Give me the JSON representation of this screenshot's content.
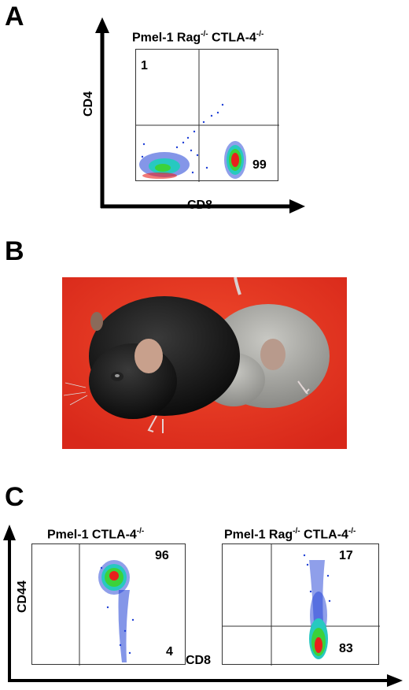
{
  "panels": {
    "a": {
      "letter": "A",
      "title_main": "Pmel-1 Rag",
      "title_sup1": "-/-",
      "title_mid": " CTLA-4",
      "title_sup2": "-/-",
      "x_label": "CD8",
      "y_label": "CD4",
      "quad_ul": "1",
      "quad_lr": "99"
    },
    "b": {
      "letter": "B"
    },
    "c": {
      "letter": "C",
      "x_label": "CD8",
      "y_label": "CD44",
      "left": {
        "title_main": "Pmel-1 CTLA-4",
        "title_sup": "-/-",
        "quad_ur": "96",
        "quad_lr": "4"
      },
      "right": {
        "title_main": "Pmel-1 Rag",
        "title_sup1": "-/-",
        "title_mid": " CTLA-4",
        "title_sup2": "-/-",
        "quad_ur": "17",
        "quad_lr": "83"
      }
    }
  },
  "colors": {
    "background_photo": "#e8321e",
    "density_low": "#1f3fd6",
    "density_mid": "#27c9c0",
    "density_high": "#3bd23b",
    "density_peak": "#e8201c"
  }
}
